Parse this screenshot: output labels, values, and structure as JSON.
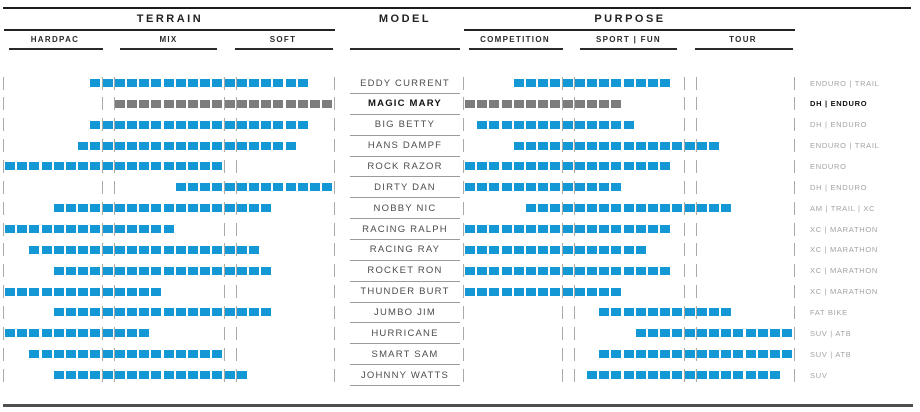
{
  "header": {
    "terrain": "TERRAIN",
    "model": "MODEL",
    "purpose": "PURPOSE",
    "terrain_cols": [
      "HARDPAC",
      "MIX",
      "SOFT"
    ],
    "purpose_cols": [
      "COMPETITION",
      "SPORT | FUN",
      "TOUR"
    ]
  },
  "colors": {
    "bar_blue": "#1398d5",
    "bar_highlight_gray": "#7d7d7d",
    "divider_gray": "#a9a9a9",
    "rule_dark": "#1c1c1c",
    "bottom_rule_gray": "#4f4f4f",
    "header_text": "#222222",
    "model_text": "#4d4d4d",
    "category_text": "#a3a3a3"
  },
  "chart_data": {
    "type": "heatmap",
    "title": "",
    "description_axes": {
      "terrain_axis": "TERRAIN scale from HARDPAC (left) through MIX to SOFT (right)",
      "purpose_axis": "PURPOSE scale from COMPETITION (left) through SPORT | FUN to TOUR (right)"
    },
    "grid": {
      "cells_per_strip": 27,
      "terrain_column_cells": {
        "HARDPAC": [
          0,
          7
        ],
        "MIX": [
          9,
          17
        ],
        "SOFT": [
          19,
          26
        ]
      },
      "purpose_column_cells": {
        "COMPETITION": [
          0,
          7
        ],
        "SPORT | FUN": [
          9,
          17
        ],
        "TOUR": [
          19,
          26
        ]
      },
      "divider_cell_boundaries": "thin vertical lines at strip edges and flanking gap cells 8 and 18"
    },
    "tires": [
      {
        "name": "EDDY CURRENT",
        "category": "ENDURO | TRAIL",
        "terrain": [
          7,
          24
        ],
        "purpose": [
          4,
          16
        ],
        "highlight": false
      },
      {
        "name": "MAGIC MARY",
        "category": "DH | ENDURO",
        "terrain": [
          9,
          26
        ],
        "purpose": [
          0,
          12
        ],
        "highlight": true
      },
      {
        "name": "BIG BETTY",
        "category": "DH | ENDURO",
        "terrain": [
          7,
          24
        ],
        "purpose": [
          1,
          13
        ],
        "highlight": false
      },
      {
        "name": "HANS DAMPF",
        "category": "ENDURO | TRAIL",
        "terrain": [
          6,
          23
        ],
        "purpose": [
          4,
          20
        ],
        "highlight": false
      },
      {
        "name": "ROCK RAZOR",
        "category": "ENDURO",
        "terrain": [
          0,
          17
        ],
        "purpose": [
          0,
          16
        ],
        "highlight": false
      },
      {
        "name": "DIRTY DAN",
        "category": "DH | ENDURO",
        "terrain": [
          14,
          26
        ],
        "purpose": [
          0,
          12
        ],
        "highlight": false
      },
      {
        "name": "NOBBY NIC",
        "category": "AM | TRAIL | XC",
        "terrain": [
          4,
          21
        ],
        "purpose": [
          5,
          21
        ],
        "highlight": false
      },
      {
        "name": "RACING RALPH",
        "category": "XC | MARATHON",
        "terrain": [
          0,
          13
        ],
        "purpose": [
          0,
          16
        ],
        "highlight": false
      },
      {
        "name": "RACING RAY",
        "category": "XC | MARATHON",
        "terrain": [
          2,
          20
        ],
        "purpose": [
          0,
          14
        ],
        "highlight": false
      },
      {
        "name": "ROCKET RON",
        "category": "XC | MARATHON",
        "terrain": [
          4,
          21
        ],
        "purpose": [
          0,
          16
        ],
        "highlight": false
      },
      {
        "name": "THUNDER BURT",
        "category": "XC | MARATHON",
        "terrain": [
          0,
          12
        ],
        "purpose": [
          0,
          12
        ],
        "highlight": false
      },
      {
        "name": "JUMBO JIM",
        "category": "FAT BIKE",
        "terrain": [
          4,
          21
        ],
        "purpose": [
          11,
          21
        ],
        "highlight": false
      },
      {
        "name": "HURRICANE",
        "category": "SUV | ATB",
        "terrain": [
          0,
          11
        ],
        "purpose": [
          14,
          26
        ],
        "highlight": false
      },
      {
        "name": "SMART SAM",
        "category": "SUV | ATB",
        "terrain": [
          2,
          17
        ],
        "purpose": [
          11,
          26
        ],
        "highlight": false
      },
      {
        "name": "JOHNNY WATTS",
        "category": "SUV",
        "terrain": [
          4,
          19
        ],
        "purpose": [
          10,
          25
        ],
        "highlight": false
      }
    ]
  }
}
